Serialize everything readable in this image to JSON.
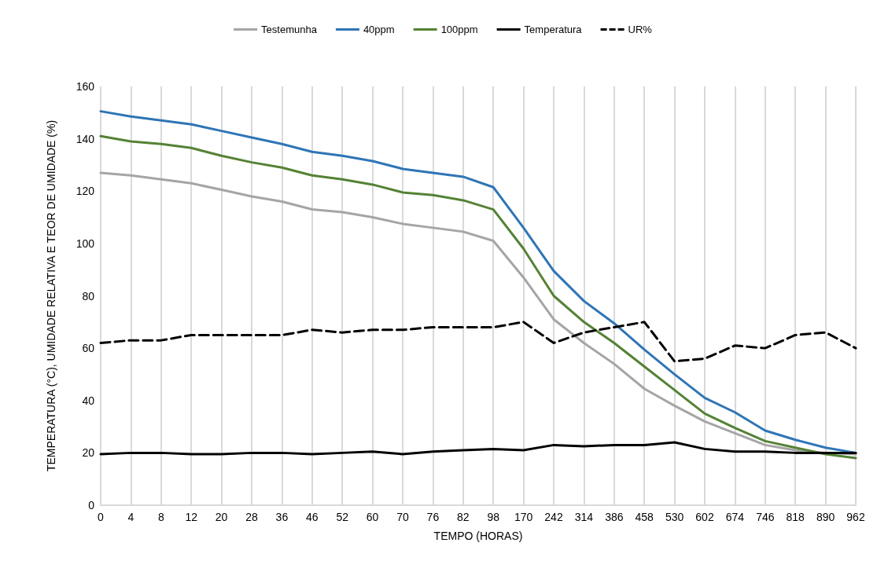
{
  "chart_data": {
    "type": "line",
    "xlabel": "TEMPO (HORAS)",
    "ylabel": "TEMPERATURA (°C), UMIDADE RELATIVA E TEOR DE UMIDADE (%)",
    "categories": [
      "0",
      "4",
      "8",
      "12",
      "20",
      "28",
      "36",
      "46",
      "52",
      "60",
      "70",
      "76",
      "82",
      "98",
      "170",
      "242",
      "314",
      "386",
      "458",
      "530",
      "602",
      "674",
      "746",
      "818",
      "890",
      "962"
    ],
    "series": [
      {
        "name": "Testemunha",
        "color": "#a5a5a5",
        "values": [
          127,
          126,
          124.5,
          123,
          120.5,
          118,
          116,
          113,
          112,
          110,
          107.5,
          106,
          104.5,
          101,
          87,
          71,
          62,
          54,
          44.5,
          38,
          32,
          27.5,
          23,
          21,
          20,
          19.5
        ]
      },
      {
        "name": "40ppm",
        "color": "#2e75b6",
        "values": [
          150.5,
          148.5,
          147,
          145.5,
          143,
          140.5,
          138,
          135,
          133.5,
          131.5,
          128.5,
          127,
          125.5,
          121.5,
          106,
          89.5,
          78,
          69.5,
          59.5,
          50,
          41,
          35.5,
          28.5,
          25,
          22,
          20
        ]
      },
      {
        "name": "100ppm",
        "color": "#548235",
        "values": [
          141,
          139,
          138,
          136.5,
          133.5,
          131,
          129,
          126,
          124.5,
          122.5,
          119.5,
          118.5,
          116.5,
          113,
          98,
          80,
          70,
          62,
          53,
          44,
          35,
          29.5,
          24.5,
          22,
          19.5,
          18
        ]
      },
      {
        "name": "Temperatura",
        "color": "#000000",
        "values": [
          19.5,
          20,
          20,
          19.5,
          19.5,
          20,
          20,
          19.5,
          20,
          20.5,
          19.5,
          20.5,
          21,
          21.5,
          21,
          23,
          22.5,
          23,
          23,
          24,
          21.5,
          20.5,
          20.5,
          20,
          20,
          20
        ]
      },
      {
        "name": "UR%",
        "color": "#000000",
        "line_style": "dashed",
        "values": [
          62,
          63,
          63,
          65,
          65,
          65,
          65,
          67,
          66,
          67,
          67,
          68,
          68,
          68,
          70,
          62,
          66,
          68,
          70,
          55,
          56,
          61,
          60,
          65,
          66,
          60
        ]
      }
    ],
    "ylim": [
      0,
      160
    ],
    "yticks": [
      0,
      20,
      40,
      60,
      80,
      100,
      120,
      140,
      160
    ],
    "grid": "x",
    "legend": "top",
    "marker": "none",
    "line_style": "solid"
  }
}
